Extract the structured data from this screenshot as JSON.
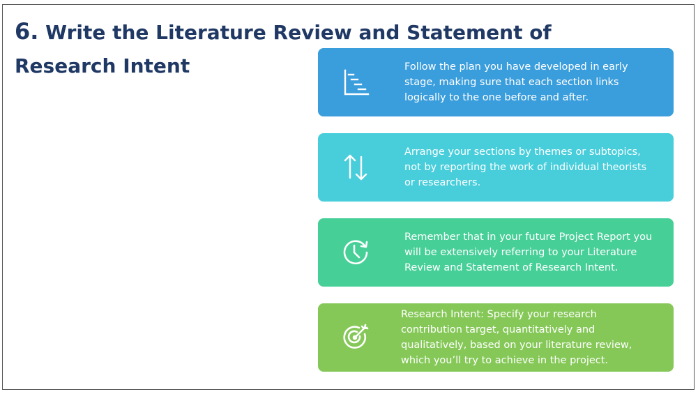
{
  "slide": {
    "title_number": "6.",
    "title_text": " Write the Literature Review and Statement of Research Intent"
  },
  "cards": [
    {
      "icon": "gantt-chart-icon",
      "color": "#3a9ddc",
      "text": "Follow the plan you have developed in early stage, making sure that each section links logically to the one before and after."
    },
    {
      "icon": "arrows-up-down-icon",
      "color": "#48cddb",
      "text": "Arrange your sections by themes or subtopics, not by reporting the work of individual theorists or researchers."
    },
    {
      "icon": "clock-refresh-icon",
      "color": "#47cf98",
      "text": "Remember that in your future Project Report you will be extensively referring to your Literature Review and Statement of Research Intent."
    },
    {
      "icon": "target-icon",
      "color": "#85c858",
      "text": "Research Intent: Specify your research contribution target, quantitatively and qualitatively, based on your literature review, which you’ll try to achieve in the project."
    }
  ]
}
